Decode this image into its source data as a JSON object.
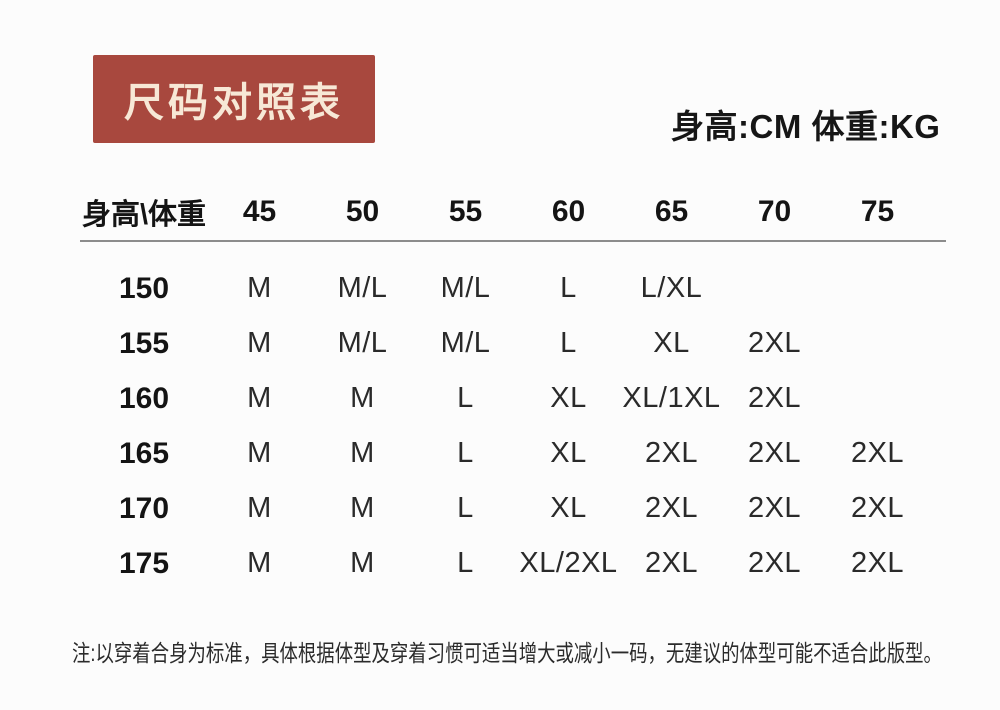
{
  "colors": {
    "page_bg": "#fcfcfc",
    "badge_bg": "#a8483e",
    "badge_text": "#f7e8d6",
    "ink": "#1b1b1b",
    "cell_text": "#2a2a2a",
    "rule": "#8c8c8c",
    "note_text": "#2b2b2b"
  },
  "header": {
    "badge_label": "尺码对照表",
    "units_label": "身高:CM 体重:KG"
  },
  "chart_data": {
    "type": "table",
    "title": "尺码对照表",
    "units": "身高:CM 体重:KG",
    "corner_header": "身高\\体重",
    "weight_columns_kg": [
      "45",
      "50",
      "55",
      "60",
      "65",
      "70",
      "75"
    ],
    "rows": [
      {
        "height_cm": "150",
        "sizes": [
          "M",
          "M/L",
          "M/L",
          "L",
          "L/XL",
          "",
          ""
        ]
      },
      {
        "height_cm": "155",
        "sizes": [
          "M",
          "M/L",
          "M/L",
          "L",
          "XL",
          "2XL",
          ""
        ]
      },
      {
        "height_cm": "160",
        "sizes": [
          "M",
          "M",
          "L",
          "XL",
          "XL/1XL",
          "2XL",
          ""
        ]
      },
      {
        "height_cm": "165",
        "sizes": [
          "M",
          "M",
          "L",
          "XL",
          "2XL",
          "2XL",
          "2XL"
        ]
      },
      {
        "height_cm": "170",
        "sizes": [
          "M",
          "M",
          "L",
          "XL",
          "2XL",
          "2XL",
          "2XL"
        ]
      },
      {
        "height_cm": "175",
        "sizes": [
          "M",
          "M",
          "L",
          "XL/2XL",
          "2XL",
          "2XL",
          "2XL"
        ]
      }
    ],
    "footnote": "注:以穿着合身为标准，具体根据体型及穿着习惯可适当增大或减小一码，无建议的体型可能不适合此版型。",
    "legend_position": "none",
    "grid": "header-rule-only"
  }
}
